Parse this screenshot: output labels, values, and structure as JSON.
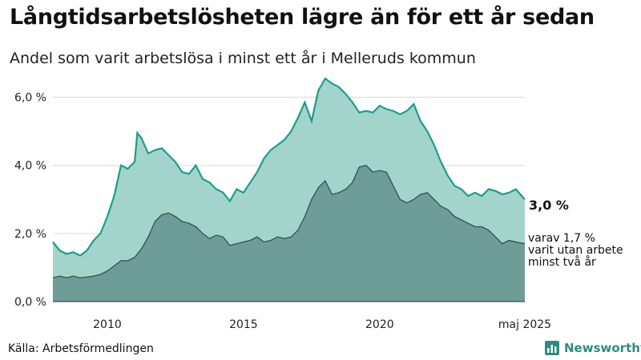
{
  "title": "Långtidsarbetslösheten lägre än för ett år sedan",
  "subtitle": "Andel som varit arbetslösa i minst ett år i Melleruds kommun",
  "source": "Källa: Arbetsförmedlingen",
  "brand": "Newsworthy",
  "colors": {
    "total": "#1a9e8c",
    "total_fill": "#a3d4cc",
    "sub_fill": "#6e9c96",
    "sub_line": "#2f4a46"
  },
  "chart_data": {
    "type": "area",
    "ylim": [
      0,
      6.6
    ],
    "y_ticks": [
      0,
      2,
      4,
      6
    ],
    "y_tick_labels": [
      "0,0 %",
      "2,0 %",
      "4,0 %",
      "6,0 %"
    ],
    "x_ticks": [
      2010,
      2015,
      2020,
      2025.33
    ],
    "x_tick_labels": [
      "2010",
      "2015",
      "2020",
      "maj 2025"
    ],
    "grid": true,
    "series": [
      {
        "name": "Arbetslösa i minst ett år",
        "end_label": "3,0 %",
        "x": [
          2008.0,
          2008.25,
          2008.5,
          2008.75,
          2009.0,
          2009.25,
          2009.5,
          2009.75,
          2010.0,
          2010.25,
          2010.5,
          2010.75,
          2011.0,
          2011.1,
          2011.25,
          2011.5,
          2011.75,
          2012.0,
          2012.25,
          2012.5,
          2012.75,
          2013.0,
          2013.25,
          2013.5,
          2013.75,
          2014.0,
          2014.25,
          2014.5,
          2014.75,
          2015.0,
          2015.25,
          2015.5,
          2015.75,
          2016.0,
          2016.25,
          2016.5,
          2016.75,
          2017.0,
          2017.25,
          2017.5,
          2017.75,
          2018.0,
          2018.25,
          2018.5,
          2018.75,
          2019.0,
          2019.25,
          2019.5,
          2019.75,
          2020.0,
          2020.25,
          2020.5,
          2020.75,
          2021.0,
          2021.25,
          2021.5,
          2021.75,
          2022.0,
          2022.25,
          2022.5,
          2022.75,
          2023.0,
          2023.25,
          2023.5,
          2023.75,
          2024.0,
          2024.25,
          2024.5,
          2024.75,
          2025.0,
          2025.33
        ],
        "values": [
          1.75,
          1.5,
          1.4,
          1.45,
          1.35,
          1.5,
          1.8,
          2.0,
          2.5,
          3.1,
          4.0,
          3.9,
          4.1,
          4.95,
          4.8,
          4.35,
          4.45,
          4.5,
          4.3,
          4.1,
          3.8,
          3.75,
          4.0,
          3.6,
          3.5,
          3.3,
          3.2,
          2.95,
          3.3,
          3.2,
          3.5,
          3.8,
          4.2,
          4.45,
          4.6,
          4.75,
          5.0,
          5.4,
          5.85,
          5.3,
          6.2,
          6.55,
          6.4,
          6.3,
          6.1,
          5.85,
          5.55,
          5.6,
          5.55,
          5.75,
          5.65,
          5.6,
          5.5,
          5.6,
          5.8,
          5.3,
          5.0,
          4.6,
          4.1,
          3.7,
          3.4,
          3.3,
          3.1,
          3.2,
          3.1,
          3.3,
          3.25,
          3.15,
          3.2,
          3.3,
          3.0
        ]
      },
      {
        "name": "varav utan arbete minst två år",
        "end_label_lines": [
          "varav 1,7 %",
          "varit utan arbete",
          "minst två år"
        ],
        "x": [
          2008.0,
          2008.25,
          2008.5,
          2008.75,
          2009.0,
          2009.25,
          2009.5,
          2009.75,
          2010.0,
          2010.25,
          2010.5,
          2010.75,
          2011.0,
          2011.25,
          2011.5,
          2011.75,
          2012.0,
          2012.25,
          2012.5,
          2012.75,
          2013.0,
          2013.25,
          2013.5,
          2013.75,
          2014.0,
          2014.25,
          2014.5,
          2014.75,
          2015.0,
          2015.25,
          2015.5,
          2015.75,
          2016.0,
          2016.25,
          2016.5,
          2016.75,
          2017.0,
          2017.25,
          2017.5,
          2017.75,
          2018.0,
          2018.25,
          2018.5,
          2018.75,
          2019.0,
          2019.25,
          2019.5,
          2019.75,
          2020.0,
          2020.25,
          2020.5,
          2020.75,
          2021.0,
          2021.25,
          2021.5,
          2021.75,
          2022.0,
          2022.25,
          2022.5,
          2022.75,
          2023.0,
          2023.25,
          2023.5,
          2023.75,
          2024.0,
          2024.25,
          2024.5,
          2024.75,
          2025.0,
          2025.33
        ],
        "values": [
          0.7,
          0.75,
          0.7,
          0.75,
          0.7,
          0.72,
          0.75,
          0.8,
          0.9,
          1.05,
          1.2,
          1.2,
          1.3,
          1.55,
          1.9,
          2.35,
          2.55,
          2.6,
          2.5,
          2.35,
          2.3,
          2.2,
          2.0,
          1.85,
          1.95,
          1.9,
          1.65,
          1.7,
          1.75,
          1.8,
          1.9,
          1.75,
          1.8,
          1.9,
          1.85,
          1.9,
          2.1,
          2.5,
          3.0,
          3.35,
          3.55,
          3.15,
          3.2,
          3.3,
          3.5,
          3.95,
          4.0,
          3.8,
          3.85,
          3.8,
          3.4,
          3.0,
          2.9,
          3.0,
          3.15,
          3.2,
          3.0,
          2.8,
          2.7,
          2.5,
          2.4,
          2.3,
          2.2,
          2.2,
          2.1,
          1.9,
          1.7,
          1.8,
          1.75,
          1.7
        ]
      }
    ]
  }
}
